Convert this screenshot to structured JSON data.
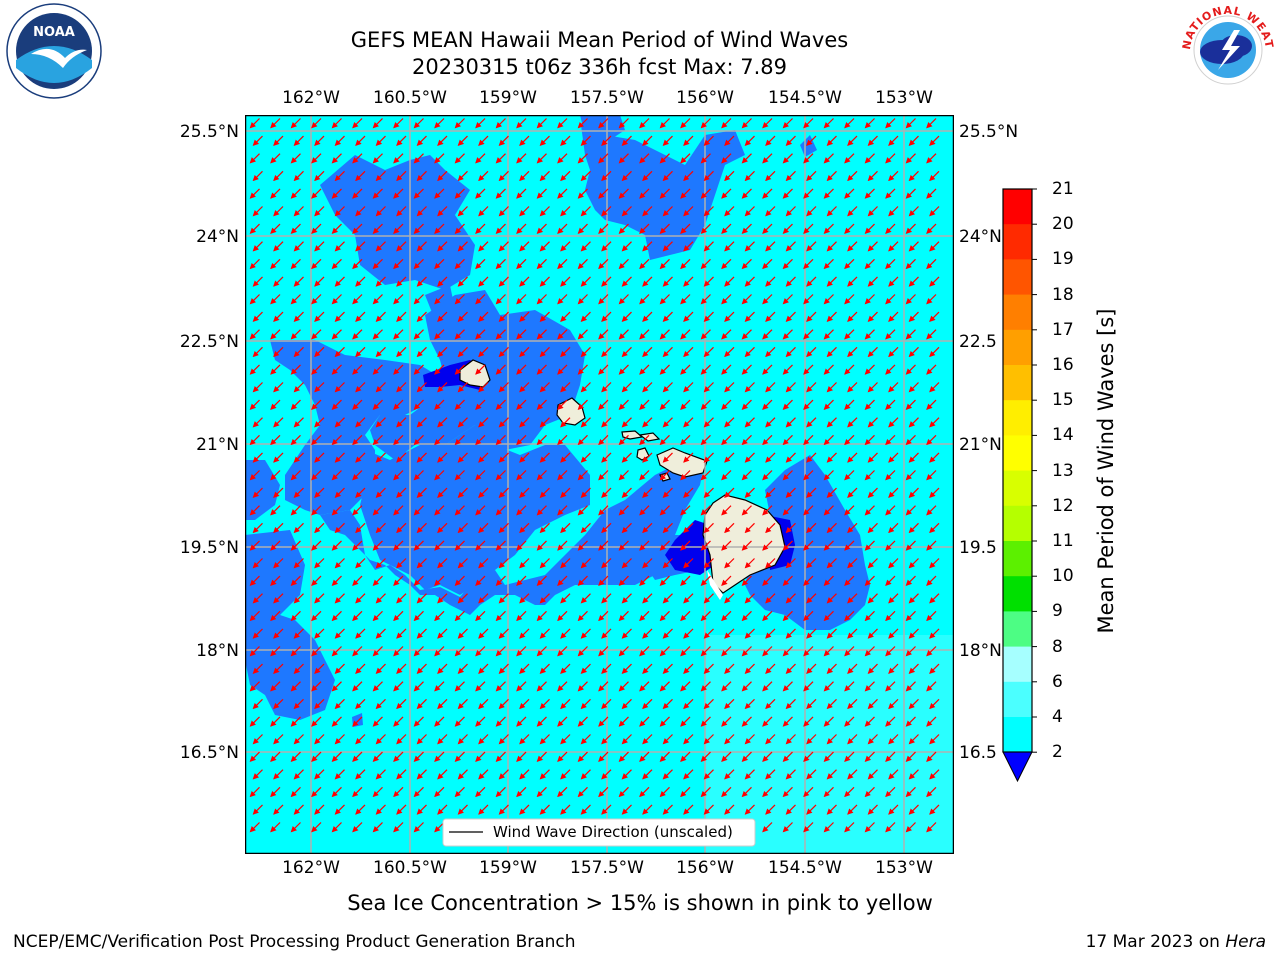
{
  "title_line1": "GEFS MEAN Hawaii Mean Period of Wind Waves",
  "title_line2": "20230315 t06z 336h fcst   Max: 7.89",
  "lon_ticks": [
    "162°W",
    "160.5°W",
    "159°W",
    "157.5°W",
    "156°W",
    "154.5°W",
    "153°W"
  ],
  "lat_ticks": [
    "25.5°N",
    "24°N",
    "22.5°N",
    "21°N",
    "19.5°N",
    "18°N",
    "16.5°N"
  ],
  "lat_ticks_right": [
    "25.5°N",
    "24°N",
    "22.5",
    "21°N",
    "19.5",
    "18°N",
    "16.5"
  ],
  "colorbar": {
    "label": "Mean Period of Wind Waves [s]",
    "ticks": [
      "21",
      "20",
      "19",
      "18",
      "17",
      "16",
      "15",
      "14",
      "13",
      "12",
      "11",
      "10",
      "9",
      "8",
      "6",
      "4",
      "2"
    ],
    "colors": [
      "#ff0000",
      "#ff2a00",
      "#ff5500",
      "#ff7f00",
      "#ff9f00",
      "#ffbf00",
      "#ffee00",
      "#ffff00",
      "#e5ff00",
      "#c8ff00",
      "#a0ff00",
      "#5cf000",
      "#00e000",
      "#20e86e",
      "#4dfd84",
      "#a6ffff",
      "#4bffff",
      "#00ffff",
      "#0080ff",
      "#0000ff"
    ]
  },
  "legend": {
    "label": "Wind Wave Direction (unscaled)"
  },
  "caption": "Sea Ice Concentration > 15% is shown in pink to yellow",
  "footer_left": "NCEP/EMC/Verification Post Processing Product Generation Branch",
  "footer_right_prefix": "17 Mar 2023 on ",
  "footer_right_machine": "Hera",
  "logo_left": {
    "text": "NOAA"
  },
  "logo_right": {
    "text": "NATIONAL WEATHER SERVICE"
  },
  "colors": {
    "ocean_light": "#00ffff",
    "ocean_mid": "#1e90ff",
    "ocean_dark": "#0000ee",
    "land": "#efeedb",
    "arrow": "#ff0000",
    "grid": "#b0b0b0"
  }
}
